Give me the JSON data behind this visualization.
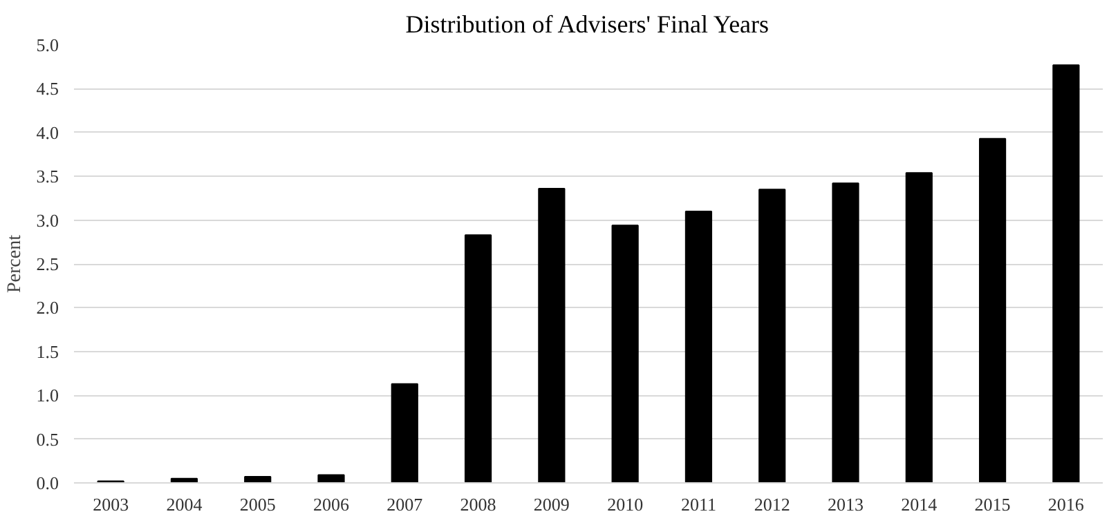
{
  "chart_data": {
    "type": "bar",
    "title": "Distribution of Advisers' Final Years",
    "ylabel": "Percent",
    "categories": [
      "2003",
      "2004",
      "2005",
      "2006",
      "2007",
      "2008",
      "2009",
      "2010",
      "2011",
      "2012",
      "2013",
      "2014",
      "2015",
      "2016"
    ],
    "values": [
      0.02,
      0.05,
      0.07,
      0.09,
      1.13,
      2.83,
      3.36,
      2.94,
      3.1,
      3.35,
      3.42,
      3.54,
      3.93,
      4.77
    ],
    "color": "#000000",
    "ylim": [
      0,
      5
    ],
    "yticks": [
      {
        "value": 0,
        "label": "0.0"
      },
      {
        "value": 0.5,
        "label": "0.5"
      },
      {
        "value": 1,
        "label": "1.0"
      },
      {
        "value": 1.5,
        "label": "1.5"
      },
      {
        "value": 2,
        "label": "2.0"
      },
      {
        "value": 2.5,
        "label": "2.5"
      },
      {
        "value": 3,
        "label": "3.0"
      },
      {
        "value": 3.5,
        "label": "3.5"
      },
      {
        "value": 4,
        "label": "4.0"
      },
      {
        "value": 4.5,
        "label": "4.5"
      },
      {
        "value": 5,
        "label": "5.0"
      }
    ],
    "grid": "y"
  }
}
